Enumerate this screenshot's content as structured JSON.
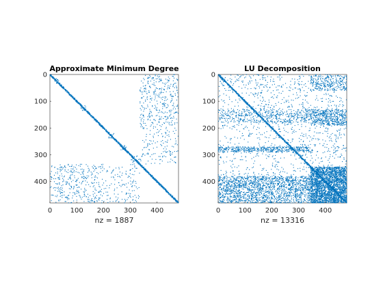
{
  "chart_data": [
    {
      "type": "spy",
      "title": "Approximate Minimum Degree",
      "xlabel": "nz = 1887",
      "ylabel": "",
      "matrix_size": 480,
      "nonzeros": 1887,
      "xlim": [
        0,
        480
      ],
      "ylim": [
        0,
        480
      ],
      "xticks": [
        0,
        100,
        200,
        300,
        400
      ],
      "yticks": [
        0,
        100,
        200,
        300,
        400
      ],
      "y_reversed": true,
      "grid": false,
      "marker_color": "#0072BD",
      "diagonal": [
        {
          "start": 0,
          "end": 480
        }
      ],
      "blocks": [
        {
          "rows": [
            15,
            35
          ],
          "cols": [
            15,
            35
          ],
          "density": 0.18
        },
        {
          "rows": [
            115,
            135
          ],
          "cols": [
            115,
            135
          ],
          "density": 0.2
        },
        {
          "rows": [
            220,
            240
          ],
          "cols": [
            220,
            240
          ],
          "density": 0.18
        },
        {
          "rows": [
            265,
            285
          ],
          "cols": [
            265,
            285
          ],
          "density": 0.22
        },
        {
          "rows": [
            300,
            345
          ],
          "cols": [
            300,
            345
          ],
          "density": 0.08
        }
      ],
      "bands": [
        {
          "rows": [
            0,
            200
          ],
          "cols": [
            335,
            480
          ],
          "density": 0.05
        },
        {
          "rows": [
            335,
            480
          ],
          "cols": [
            0,
            200
          ],
          "density": 0.05
        },
        {
          "rows": [
            345,
            480
          ],
          "cols": [
            200,
            335
          ],
          "density": 0.03
        },
        {
          "rows": [
            200,
            335
          ],
          "cols": [
            345,
            480
          ],
          "density": 0.03
        }
      ]
    },
    {
      "type": "spy",
      "title": "LU Decomposition",
      "xlabel": "nz = 13316",
      "ylabel": "",
      "matrix_size": 480,
      "nonzeros": 13316,
      "xlim": [
        0,
        480
      ],
      "ylim": [
        0,
        480
      ],
      "xticks": [
        0,
        100,
        200,
        300,
        400
      ],
      "yticks": [
        0,
        100,
        200,
        300,
        400
      ],
      "y_reversed": true,
      "grid": false,
      "marker_color": "#0072BD",
      "diagonal": [
        {
          "start": 0,
          "end": 480
        }
      ],
      "blocks": [
        {
          "rows": [
            345,
            480
          ],
          "cols": [
            345,
            480
          ],
          "density": 0.85
        },
        {
          "rows": [
            130,
            190
          ],
          "cols": [
            345,
            480
          ],
          "density": 0.35
        },
        {
          "rows": [
            0,
            60
          ],
          "cols": [
            345,
            480
          ],
          "density": 0.2
        },
        {
          "rows": [
            270,
            290
          ],
          "cols": [
            0,
            345
          ],
          "density": 0.4
        },
        {
          "rows": [
            380,
            480
          ],
          "cols": [
            0,
            345
          ],
          "density": 0.3
        },
        {
          "rows": [
            130,
            180
          ],
          "cols": [
            0,
            345
          ],
          "density": 0.15
        }
      ],
      "bands": [
        {
          "rows": [
            0,
            480
          ],
          "cols": [
            0,
            480
          ],
          "density": 0.015,
          "upper": true
        },
        {
          "rows": [
            0,
            480
          ],
          "cols": [
            0,
            480
          ],
          "density": 0.01,
          "lower": true
        }
      ]
    }
  ]
}
